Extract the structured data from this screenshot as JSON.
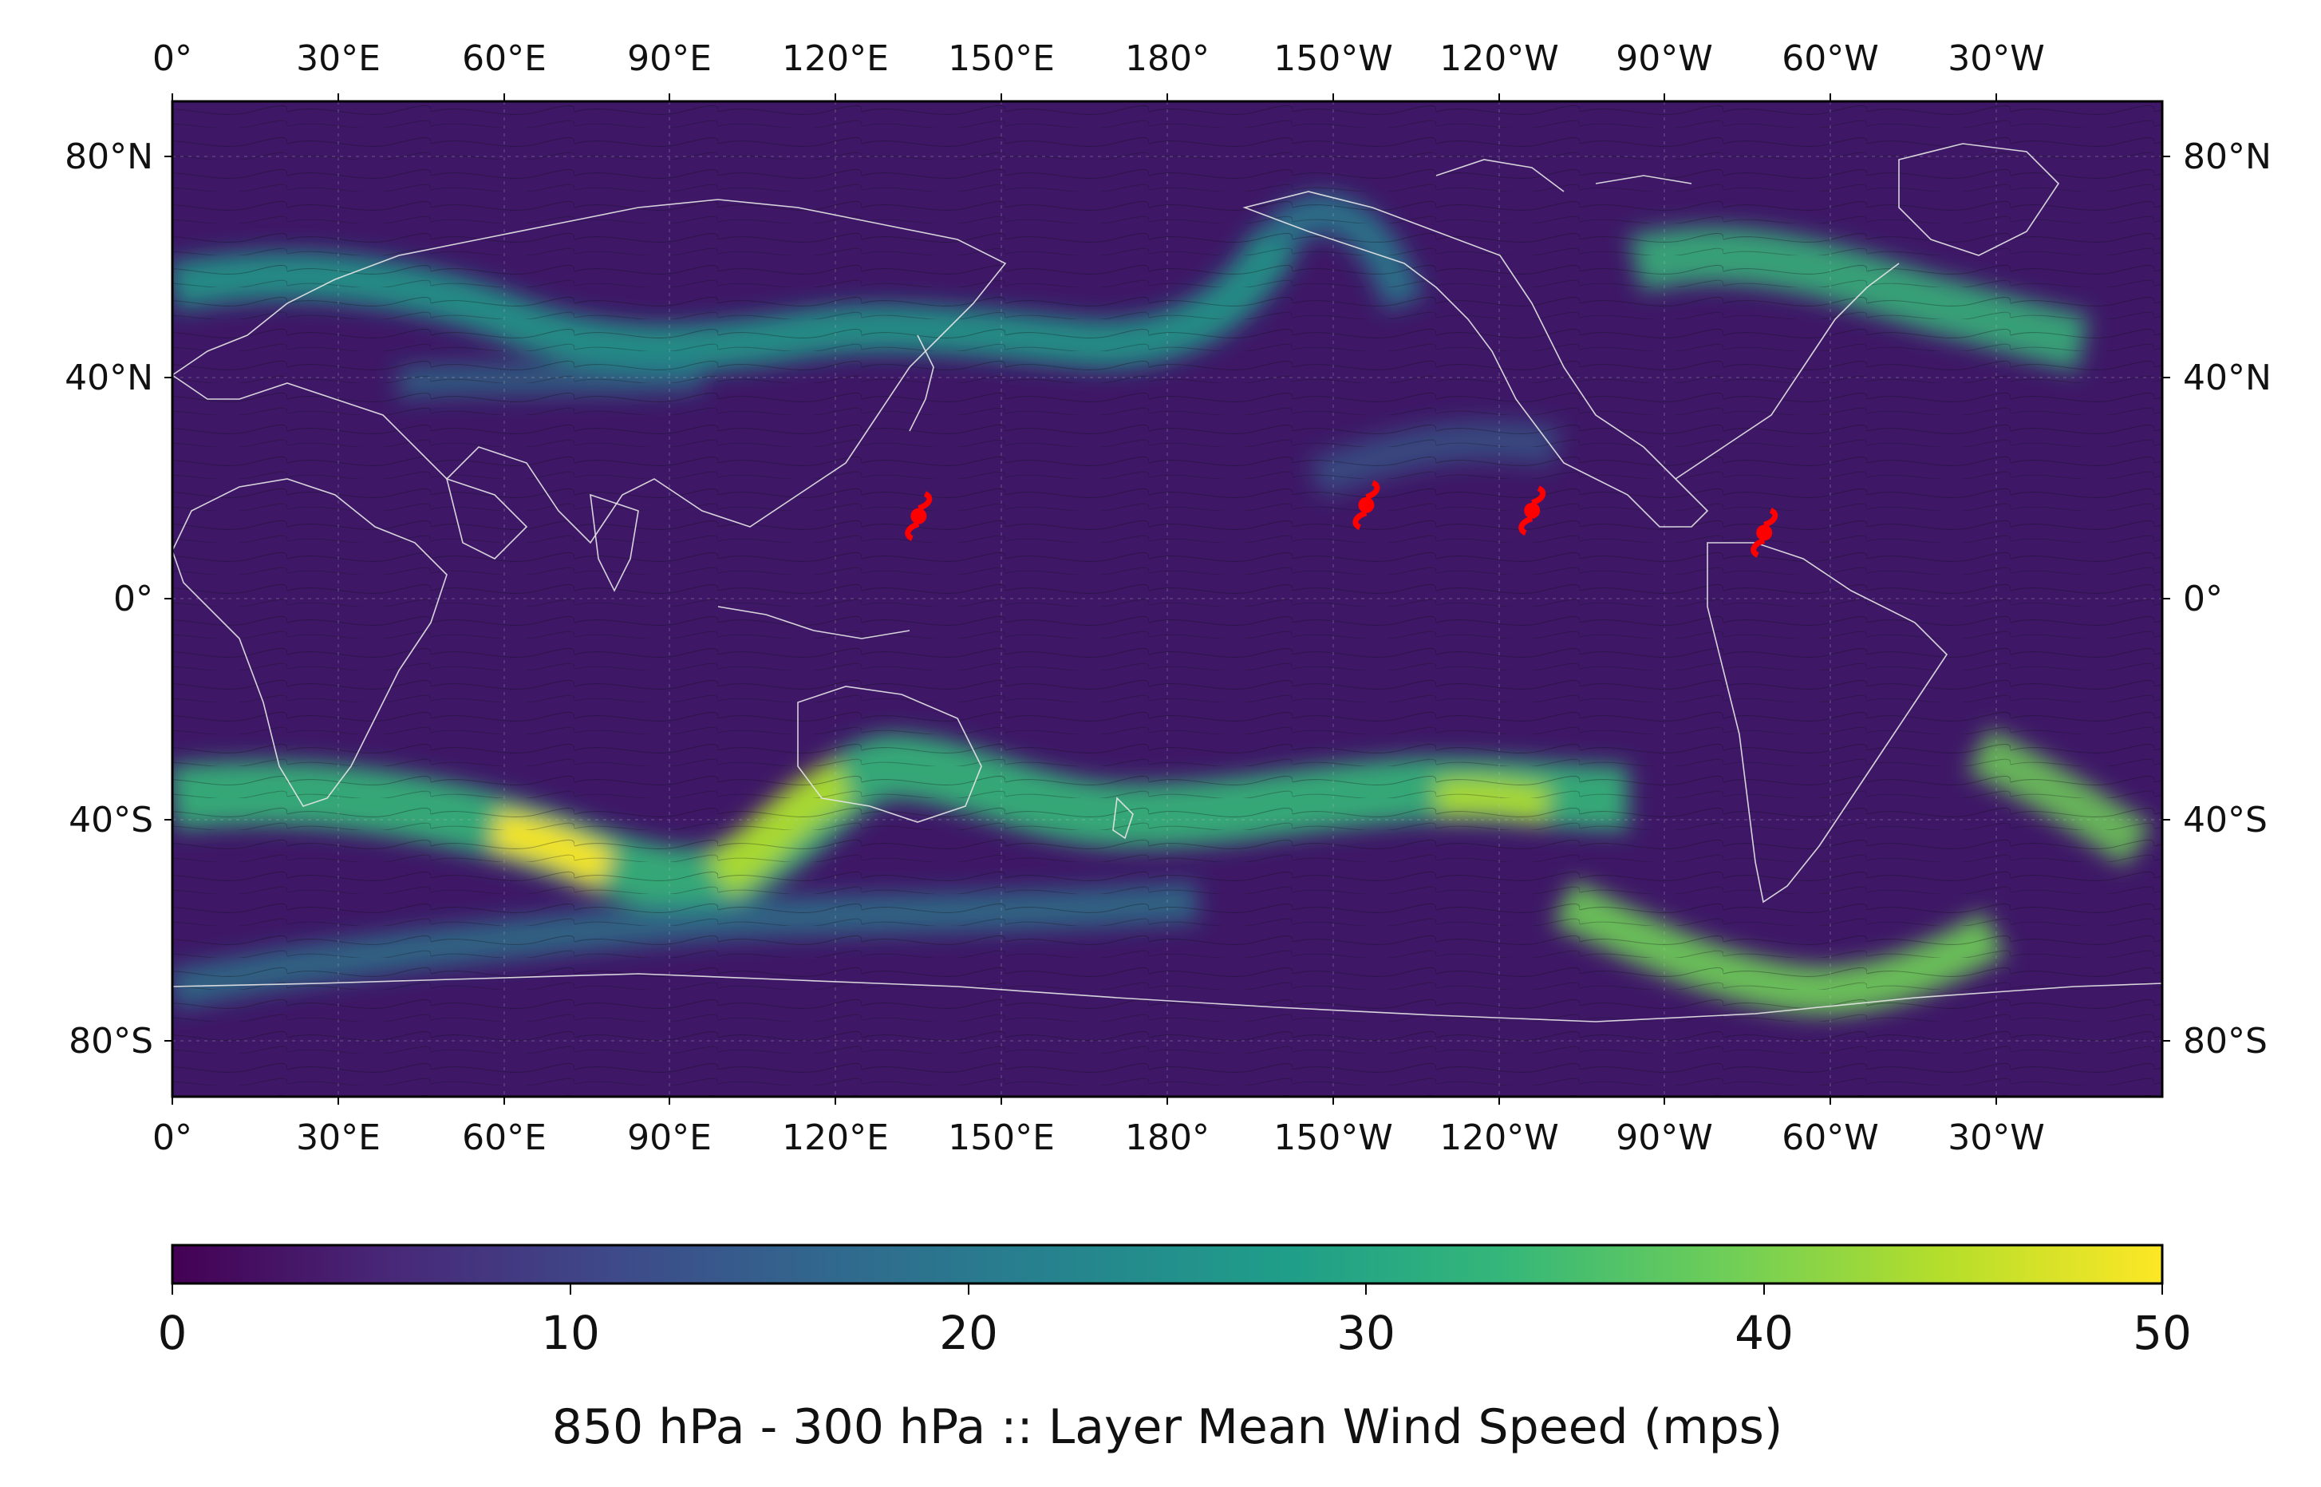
{
  "map": {
    "lon_labels": [
      "0°",
      "30°E",
      "60°E",
      "90°E",
      "120°E",
      "150°E",
      "180°",
      "150°W",
      "120°W",
      "90°W",
      "60°W",
      "30°W"
    ],
    "lat_labels": [
      "80°N",
      "40°N",
      "0°",
      "40°S",
      "80°S"
    ],
    "lon_values": [
      0,
      30,
      60,
      90,
      120,
      150,
      180,
      210,
      240,
      270,
      300,
      330
    ],
    "lat_values": [
      80,
      40,
      0,
      -40,
      -80
    ],
    "lon_range": [
      0,
      360
    ],
    "lat_range": [
      -90,
      90
    ],
    "gridlines": true,
    "streamlines": true,
    "coastlines": true,
    "cyclone_markers": [
      {
        "lon": 135,
        "lat": 15
      },
      {
        "lon": 216,
        "lat": 17
      },
      {
        "lon": 246,
        "lat": 16
      },
      {
        "lon": 288,
        "lat": 12
      }
    ]
  },
  "colorbar": {
    "ticks": [
      "0",
      "10",
      "20",
      "30",
      "40",
      "50"
    ],
    "min": 0,
    "max": 50,
    "label": "850 hPa - 300 hPa :: Layer Mean Wind Speed (mps)",
    "colormap": "viridis",
    "colors": [
      "#440154",
      "#482878",
      "#3e4989",
      "#31688e",
      "#26828e",
      "#1f9e89",
      "#35b779",
      "#6ece58",
      "#b5de2b",
      "#fde725"
    ]
  },
  "colors": {
    "marker": "#ff0000",
    "coastline": "#e8e8e8",
    "streamline": "#0a0a0a",
    "background_low": "#3b0f5c"
  }
}
